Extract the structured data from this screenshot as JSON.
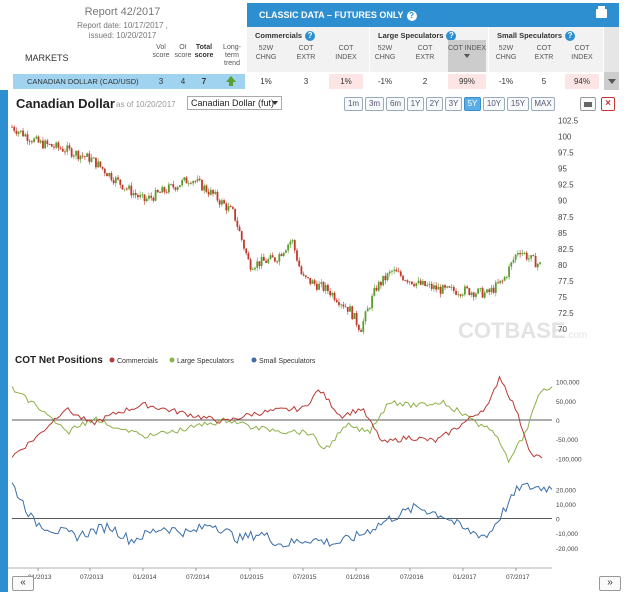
{
  "report": {
    "title": "Report 42/2017",
    "date_line": "Report date: 10/17/2017 ,",
    "issued_line": "issued: 10/20/2017"
  },
  "table": {
    "markets_label": "MARKETS",
    "col_vol": "Vol score",
    "col_oi": "OI score",
    "col_total": "Total score",
    "col_trend": "Long-term trend",
    "classic_title": "CLASSIC DATA – FUTURES ONLY",
    "groups": [
      {
        "title": "Commercials",
        "cols": [
          "52W CHNG",
          "COT EXTR",
          "COT INDEX"
        ]
      },
      {
        "title": "Large Speculators",
        "cols": [
          "52W CHNG",
          "COT EXTR",
          "COT INDEX"
        ]
      },
      {
        "title": "Small Speculators",
        "cols": [
          "52W CHNG",
          "COT EXTR",
          "COT INDEX"
        ]
      }
    ],
    "row": {
      "market": "CANADIAN DOLLAR   (CAD/USD)",
      "vol": "3",
      "oi": "4",
      "total": "7",
      "trend": "up",
      "values": [
        "1%",
        "3",
        "1%",
        "-1%",
        "2",
        "99%",
        "-1%",
        "5",
        "94%"
      ]
    }
  },
  "chart": {
    "title": "Canadian Dollar",
    "asof": "as of 10/20/2017",
    "selector": "Canadian Dollar (fut)",
    "ranges": [
      "1m",
      "3m",
      "6m",
      "1Y",
      "2Y",
      "3Y",
      "5Y",
      "10Y",
      "15Y",
      "MAX"
    ],
    "active_range": "5Y",
    "watermark": "COTBASE",
    "watermark_suffix": ".com",
    "cot_title": "COT Net Positions",
    "legend": [
      "Commercials",
      "Large Speculators",
      "Small Speculators"
    ],
    "colors": {
      "bull": "#5a9e2e",
      "bear": "#c0392b",
      "commercials": "#b83a34",
      "large": "#8fb04a",
      "small": "#3a6ea8",
      "accent": "#2d8fd0"
    },
    "nav_prev": "«",
    "nav_next": "»"
  },
  "chart_data": [
    {
      "type": "line",
      "title": "Canadian Dollar",
      "x": [
        "01/2013",
        "07/2013",
        "01/2014",
        "07/2014",
        "01/2015",
        "07/2015",
        "01/2016",
        "07/2016",
        "01/2017",
        "07/2017"
      ],
      "series": [
        {
          "values": [
            101,
            97.5,
            91,
            93,
            85,
            80,
            72,
            78,
            76,
            80.5
          ]
        }
      ],
      "yticks": [
        70,
        72.5,
        75,
        77.5,
        80,
        82.5,
        85,
        87.5,
        90,
        92.5,
        95,
        97.5,
        100,
        102.5
      ],
      "ylim": [
        68,
        103.5
      ]
    },
    {
      "type": "line",
      "title": "COT Net Positions",
      "x": [
        "01/2013",
        "07/2013",
        "01/2014",
        "07/2014",
        "01/2015",
        "07/2015",
        "01/2016",
        "07/2016",
        "01/2017",
        "07/2017"
      ],
      "series": [
        {
          "name": "Commercials",
          "values": [
            -80000,
            40000,
            30000,
            20000,
            -10000,
            80000,
            60000,
            -20000,
            30000,
            -90000
          ]
        },
        {
          "name": "Large Speculators",
          "values": [
            80000,
            -40000,
            -30000,
            -20000,
            10000,
            -80000,
            -60000,
            20000,
            -30000,
            80000
          ]
        }
      ],
      "yticks": [
        -100000,
        -50000,
        0,
        50000,
        100000
      ],
      "ylim": [
        -120000,
        120000
      ]
    },
    {
      "type": "line",
      "x": [
        "01/2013",
        "07/2013",
        "01/2014",
        "07/2014",
        "01/2015",
        "07/2015",
        "01/2016",
        "07/2016",
        "01/2017",
        "07/2017"
      ],
      "series": [
        {
          "name": "Small Speculators",
          "values": [
            25000,
            -8000,
            -10000,
            -5000,
            -12000,
            -16000,
            -15000,
            5000,
            -5000,
            22000
          ]
        }
      ],
      "yticks": [
        -20000,
        -10000,
        0,
        10000,
        20000
      ],
      "ylim": [
        -27000,
        32000
      ]
    }
  ]
}
